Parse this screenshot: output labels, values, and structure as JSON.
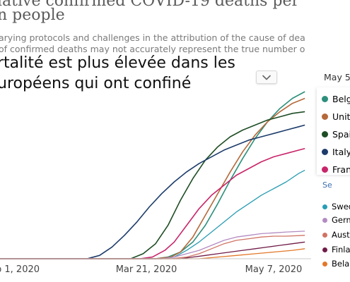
{
  "header": {
    "title_line1": "lative confirmed COVID-19 deaths per",
    "title_line2": "n people",
    "subtitle_line1": "arying protocols and challenges in the attribution of the cause of dea",
    "subtitle_line2": "of confirmed deaths may not accurately represent the true number o"
  },
  "overlay": {
    "line1": "rtalité est plus élevée dans les",
    "line2": "uropéens qui ont confiné"
  },
  "legend": {
    "date_header": "May 5,",
    "link": "Se"
  },
  "icons": {
    "dropdown": "chevron-down-icon"
  },
  "chart_data": {
    "type": "line",
    "x_ticks": [
      "b 1, 2020",
      "Mar 21, 2020",
      "May 7, 2020"
    ],
    "x_range": [
      0,
      100
    ],
    "y_range": [
      0,
      100
    ],
    "grid": false,
    "legend_placement": "right",
    "series": [
      {
        "name": "Belg",
        "color": "#2d8f7b",
        "points": [
          [
            50,
            0
          ],
          [
            54,
            1
          ],
          [
            58,
            4
          ],
          [
            62,
            10
          ],
          [
            66,
            20
          ],
          [
            70,
            33
          ],
          [
            74,
            47
          ],
          [
            78,
            60
          ],
          [
            82,
            72
          ],
          [
            86,
            82
          ],
          [
            90,
            90
          ],
          [
            94,
            96
          ],
          [
            98,
            100
          ]
        ]
      },
      {
        "name": "Unit",
        "color": "#b5693a",
        "points": [
          [
            50,
            0
          ],
          [
            55,
            1
          ],
          [
            58,
            4
          ],
          [
            62,
            13
          ],
          [
            66,
            26
          ],
          [
            70,
            39
          ],
          [
            74,
            52
          ],
          [
            78,
            64
          ],
          [
            82,
            74
          ],
          [
            86,
            82
          ],
          [
            90,
            88
          ],
          [
            94,
            93
          ],
          [
            98,
            96
          ]
        ]
      },
      {
        "name": "Spai",
        "color": "#1e4d24",
        "points": [
          [
            42,
            0
          ],
          [
            46,
            3
          ],
          [
            50,
            9
          ],
          [
            54,
            20
          ],
          [
            58,
            35
          ],
          [
            62,
            48
          ],
          [
            66,
            59
          ],
          [
            70,
            67
          ],
          [
            74,
            73
          ],
          [
            78,
            77
          ],
          [
            82,
            80
          ],
          [
            86,
            83
          ],
          [
            90,
            85
          ],
          [
            94,
            87
          ],
          [
            98,
            88
          ]
        ]
      },
      {
        "name": "Italy",
        "color": "#1d3c6b",
        "points": [
          [
            28,
            0
          ],
          [
            32,
            2
          ],
          [
            36,
            7
          ],
          [
            40,
            14
          ],
          [
            44,
            22
          ],
          [
            48,
            31
          ],
          [
            52,
            39
          ],
          [
            56,
            46
          ],
          [
            60,
            52
          ],
          [
            64,
            57
          ],
          [
            68,
            61
          ],
          [
            72,
            65
          ],
          [
            76,
            68
          ],
          [
            80,
            71
          ],
          [
            84,
            73
          ],
          [
            88,
            75
          ],
          [
            92,
            77
          ],
          [
            96,
            79
          ],
          [
            98,
            80
          ]
        ]
      },
      {
        "name": "Fran",
        "color": "#c8266a",
        "points": [
          [
            45,
            0
          ],
          [
            49,
            1
          ],
          [
            53,
            5
          ],
          [
            56,
            10
          ],
          [
            60,
            20
          ],
          [
            64,
            30
          ],
          [
            68,
            38
          ],
          [
            72,
            44
          ],
          [
            76,
            50
          ],
          [
            80,
            54
          ],
          [
            84,
            58
          ],
          [
            88,
            61
          ],
          [
            92,
            63
          ],
          [
            98,
            66
          ]
        ]
      },
      {
        "name": "Swed",
        "color": "#2a9db3",
        "points": [
          [
            52,
            0
          ],
          [
            56,
            1
          ],
          [
            60,
            5
          ],
          [
            64,
            10
          ],
          [
            68,
            16
          ],
          [
            72,
            22
          ],
          [
            76,
            28
          ],
          [
            80,
            33
          ],
          [
            84,
            38
          ],
          [
            88,
            42
          ],
          [
            92,
            46
          ],
          [
            96,
            51
          ],
          [
            98,
            53
          ]
        ]
      },
      {
        "name": "Germ",
        "color": "#b38bc2",
        "points": [
          [
            52,
            0
          ],
          [
            56,
            1
          ],
          [
            60,
            3
          ],
          [
            64,
            5
          ],
          [
            68,
            8
          ],
          [
            72,
            11
          ],
          [
            76,
            13
          ],
          [
            80,
            14
          ],
          [
            84,
            15
          ],
          [
            88,
            15.5
          ],
          [
            92,
            16
          ],
          [
            98,
            16.5
          ]
        ]
      },
      {
        "name": "Austr",
        "color": "#d07363",
        "points": [
          [
            55,
            0
          ],
          [
            60,
            1
          ],
          [
            64,
            3
          ],
          [
            68,
            6
          ],
          [
            72,
            9
          ],
          [
            76,
            11
          ],
          [
            80,
            12
          ],
          [
            84,
            13
          ],
          [
            88,
            13.5
          ],
          [
            92,
            13.5
          ],
          [
            98,
            14
          ]
        ]
      },
      {
        "name": "Finla",
        "color": "#701b47",
        "points": [
          [
            58,
            0
          ],
          [
            62,
            1
          ],
          [
            66,
            2
          ],
          [
            70,
            3
          ],
          [
            74,
            4
          ],
          [
            78,
            5
          ],
          [
            82,
            6
          ],
          [
            86,
            7
          ],
          [
            90,
            8
          ],
          [
            94,
            9
          ],
          [
            98,
            10
          ]
        ]
      },
      {
        "name": "Belar",
        "color": "#e3782a",
        "points": [
          [
            64,
            0
          ],
          [
            70,
            1
          ],
          [
            76,
            2
          ],
          [
            82,
            3
          ],
          [
            88,
            4
          ],
          [
            94,
            5
          ],
          [
            98,
            6
          ]
        ]
      }
    ]
  }
}
